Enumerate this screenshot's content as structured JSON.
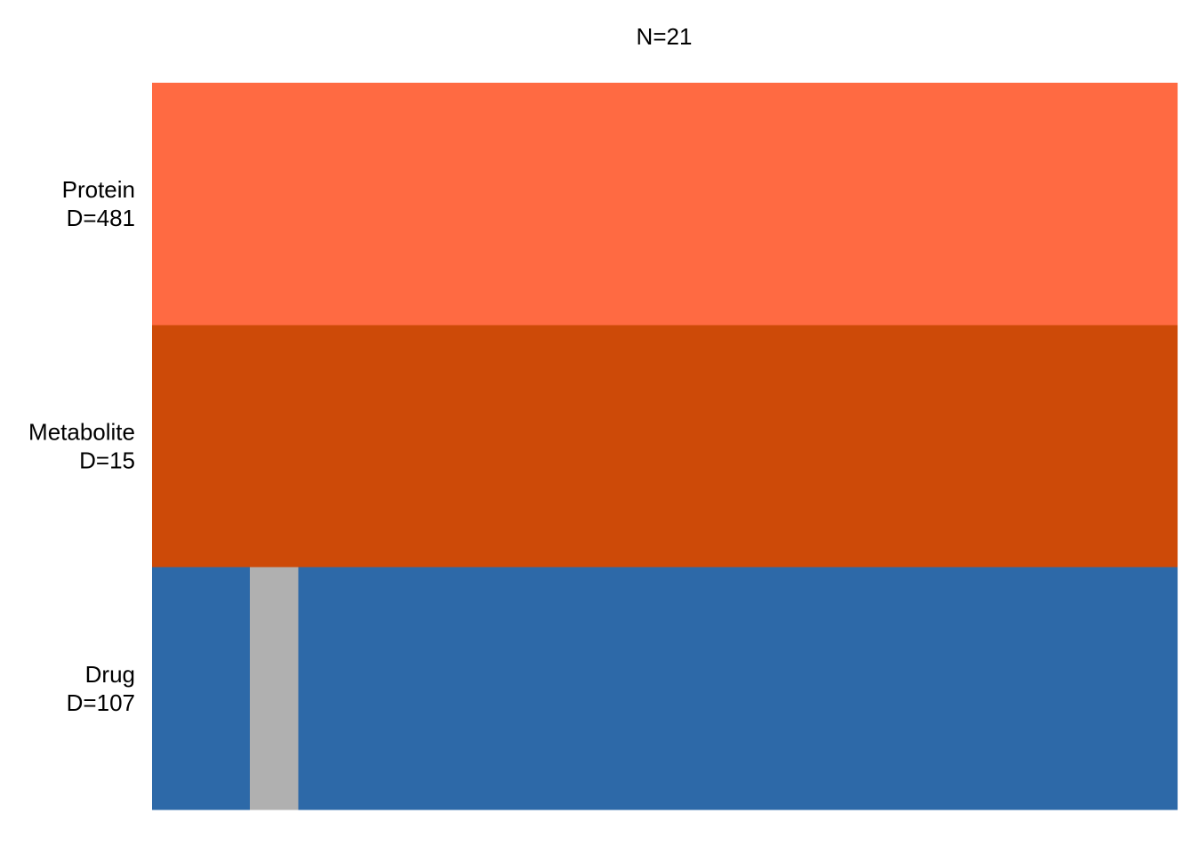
{
  "chart_data": {
    "type": "heatmap",
    "title": "N=21",
    "n_columns": 21,
    "rows": [
      {
        "name": "Protein",
        "count_label": "D=481",
        "color": "#FF6A42",
        "missing_columns": []
      },
      {
        "name": "Metabolite",
        "count_label": "D=15",
        "color": "#CD4A08",
        "missing_columns": []
      },
      {
        "name": "Drug",
        "count_label": "D=107",
        "color": "#2D69A8",
        "missing_columns": [
          3
        ]
      }
    ],
    "missing_color": "#B0B0B0",
    "grid": false,
    "legend": "none"
  }
}
